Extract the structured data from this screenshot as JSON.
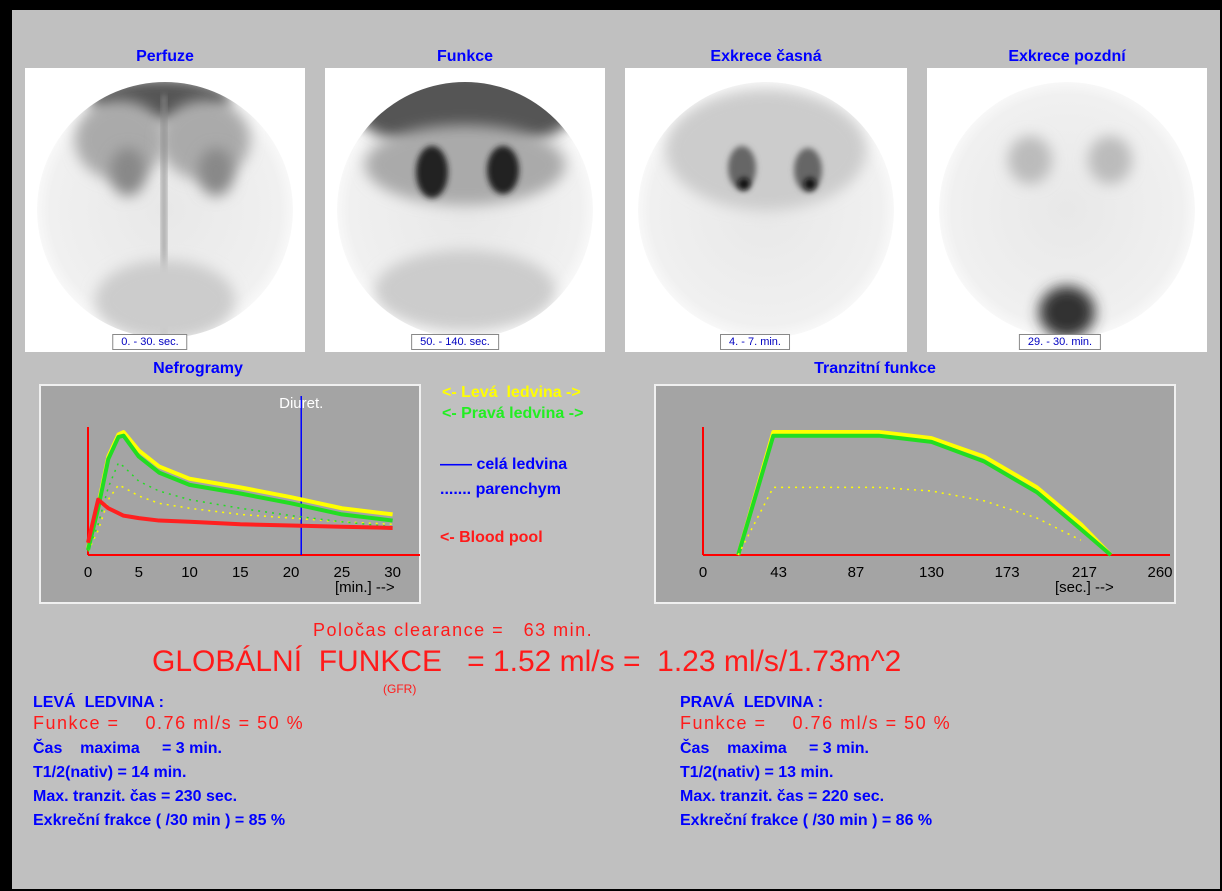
{
  "images": [
    {
      "title": "Perfuze",
      "caption": "0. - 30. sec."
    },
    {
      "title": "Funkce",
      "caption": "50. - 140. sec."
    },
    {
      "title": "Exkrece časná",
      "caption": "4. - 7. min."
    },
    {
      "title": "Exkrece pozdní",
      "caption": "29. - 30. min."
    }
  ],
  "nefrogramy": {
    "title": "Nefrogramy",
    "xlabel": "[min.] -->",
    "xlim": [
      0,
      32.5
    ],
    "ylim": [
      0,
      100
    ],
    "xticks": [
      0,
      5,
      10,
      15,
      20,
      25,
      30
    ],
    "marker": {
      "label": "Diuret.",
      "value": 21,
      "color": "#0000ff"
    },
    "x": [
      0,
      1,
      2,
      3,
      3.5,
      5,
      7,
      10,
      15,
      20,
      25,
      30
    ],
    "series": [
      {
        "color": "#ffff00",
        "style": "solid",
        "values": [
          5,
          40,
          80,
          98,
          100,
          85,
          72,
          62,
          55,
          47,
          38,
          33
        ]
      },
      {
        "color": "#22dd22",
        "style": "solid",
        "values": [
          4,
          38,
          78,
          96,
          97,
          80,
          67,
          57,
          50,
          42,
          33,
          28
        ]
      },
      {
        "color": "#ffff00",
        "style": "dotted",
        "values": [
          3,
          20,
          45,
          57,
          55,
          48,
          42,
          38,
          33,
          30,
          27,
          25
        ]
      },
      {
        "color": "#22dd22",
        "style": "dotted",
        "values": [
          3,
          25,
          55,
          75,
          72,
          60,
          52,
          45,
          38,
          32,
          27,
          23
        ]
      },
      {
        "color": "#ff2020",
        "style": "solid",
        "values": [
          10,
          45,
          38,
          34,
          32,
          30,
          28,
          27,
          25,
          24,
          23,
          22
        ]
      }
    ]
  },
  "tranzit": {
    "title": "Tranzitní funkce",
    "xlabel": "[sec.] -->",
    "xlim": [
      0,
      260
    ],
    "ylim": [
      0,
      100
    ],
    "xticks": [
      0,
      43,
      87,
      130,
      173,
      217,
      260
    ],
    "x": [
      20,
      40,
      100,
      130,
      160,
      190,
      215,
      232
    ],
    "series": [
      {
        "color": "#ffff00",
        "style": "solid",
        "values": [
          0,
          100,
          100,
          95,
          80,
          55,
          25,
          0
        ]
      },
      {
        "color": "#22dd22",
        "style": "solid",
        "values": [
          0,
          97,
          97,
          92,
          76,
          51,
          21,
          0
        ]
      },
      {
        "color": "#ffff00",
        "style": "dotted",
        "values": [
          0,
          55,
          55,
          52,
          44,
          30,
          12,
          null
        ]
      }
    ]
  },
  "legend": {
    "left": "<- Levá  ledvina ->",
    "right": "<- Pravá ledvina ->",
    "whole": "—— celá ledvina",
    "parenchym": "....... parenchym",
    "blood": "<- Blood pool"
  },
  "clearance": "Poločas clearance =   63 min.",
  "global": "GLOBÁLNÍ  FUNKCE   = 1.52 ml/s =  1.23 ml/s/1.73m^2",
  "gfr": "(GFR)",
  "left_kidney": {
    "heading": "LEVÁ  LEDVINA :",
    "funkce": "Funkce =    0.76 ml/s = 50 %",
    "lines": [
      "Čas    maxima     = 3 min.",
      "T1/2(nativ) = 14 min.",
      "Max. tranzit. čas = 230 sec.",
      "Exkreční frakce ( /30 min ) = 85 %"
    ]
  },
  "right_kidney": {
    "heading": "PRAVÁ  LEDVINA :",
    "funkce": "Funkce =    0.76 ml/s = 50 %",
    "lines": [
      "Čas    maxima     = 3 min.",
      "T1/2(nativ) = 13 min.",
      "Max. tranzit. čas = 220 sec.",
      "Exkreční frakce ( /30 min ) = 86 %"
    ]
  }
}
